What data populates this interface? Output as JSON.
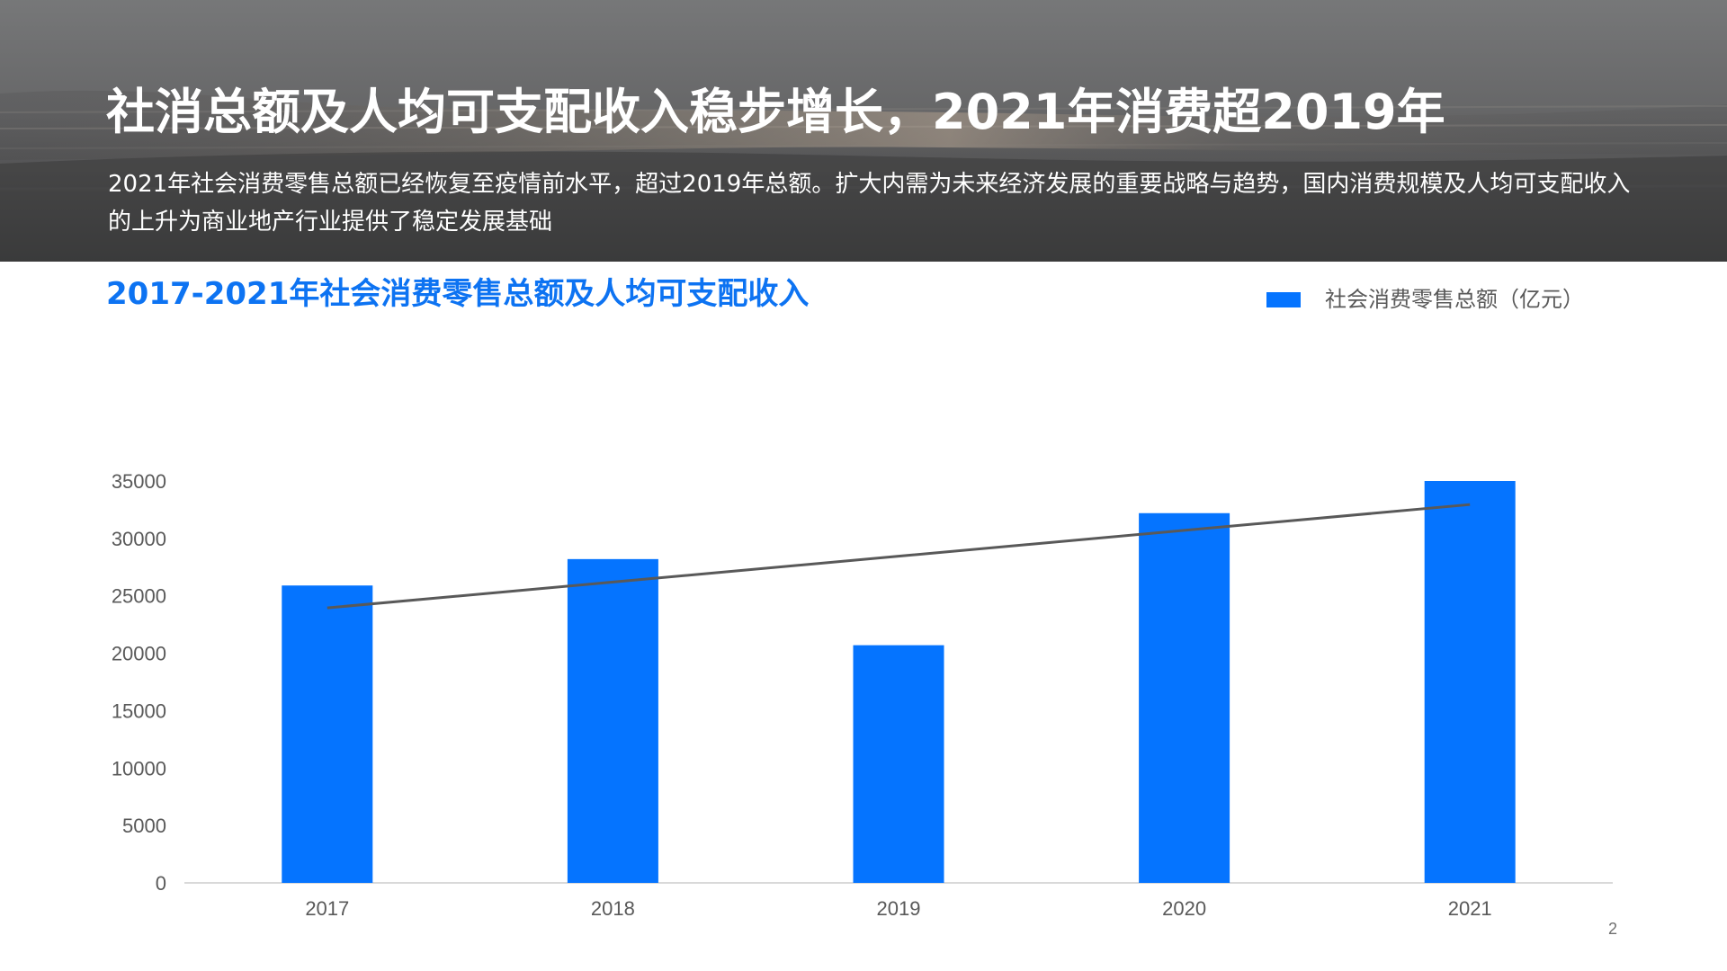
{
  "slide": {
    "title": "社消总额及人均可支配收入稳步增长，2021年消费超2019年",
    "subtitle": "2021年社会消费零售总额已经恢复至疫情前水平，超过2019年总额。扩大内需为未来经济发展的重要战略与趋势，国内消费规模及人均可支配收入的上升为商业地产行业提供了稳定发展基础",
    "page_number": "2"
  },
  "chart_data": {
    "type": "bar",
    "title": "2017-2021年社会消费零售总额及人均可支配收入",
    "categories": [
      "2017",
      "2018",
      "2019",
      "2020",
      "2021"
    ],
    "series": [
      {
        "name": "社会消费零售总额（亿元）",
        "values": [
          25900,
          28200,
          20700,
          32200,
          35000
        ],
        "color": "#0574ff"
      }
    ],
    "trendline": {
      "type": "linear",
      "values": [
        23950,
        26200,
        28450,
        30700,
        32950
      ],
      "color": "#595959"
    },
    "y_ticks": [
      "0",
      "5000",
      "10000",
      "15000",
      "20000",
      "25000",
      "30000",
      "35000"
    ],
    "ylim": [
      0,
      35000
    ],
    "grid": false,
    "legend_position": "top-right"
  },
  "colors": {
    "accent": "#0d73f2",
    "bar": "#0574ff",
    "axis": "#d9d9d9",
    "text": "#595959"
  }
}
